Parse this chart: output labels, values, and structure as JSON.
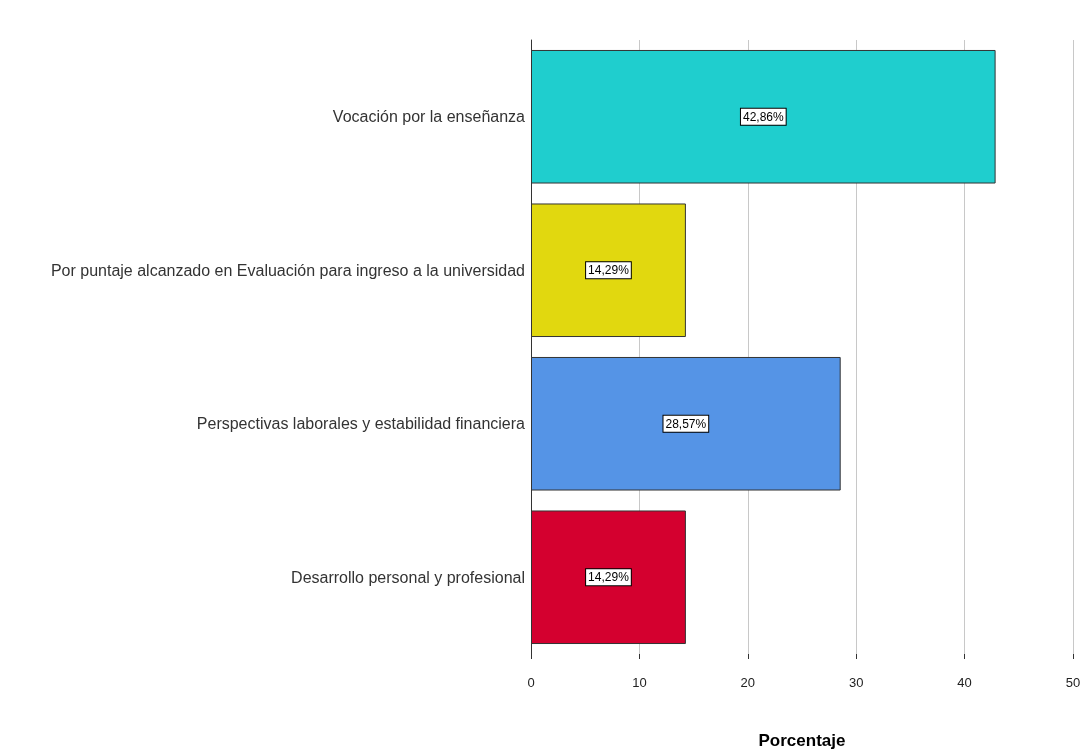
{
  "chart_data": {
    "type": "bar",
    "orientation": "horizontal",
    "xlabel": "Porcentaje",
    "categories": [
      "Vocación por la enseñanza",
      "Por puntaje alcanzado en Evaluación para ingreso a la universidad",
      "Perspectivas laborales y estabilidad financiera",
      "Desarrollo personal y profesional"
    ],
    "values": [
      42.86,
      14.29,
      28.57,
      14.29
    ],
    "colors": [
      "#1fcece",
      "#e1d80f",
      "#5594e6",
      "#d4002f"
    ],
    "value_labels": [
      "42,86%",
      "14,29%",
      "28,57%",
      "14,29%"
    ],
    "xlim": [
      0,
      50
    ],
    "xticks": [
      0,
      10,
      20,
      30,
      40,
      50
    ],
    "grid": "x"
  }
}
